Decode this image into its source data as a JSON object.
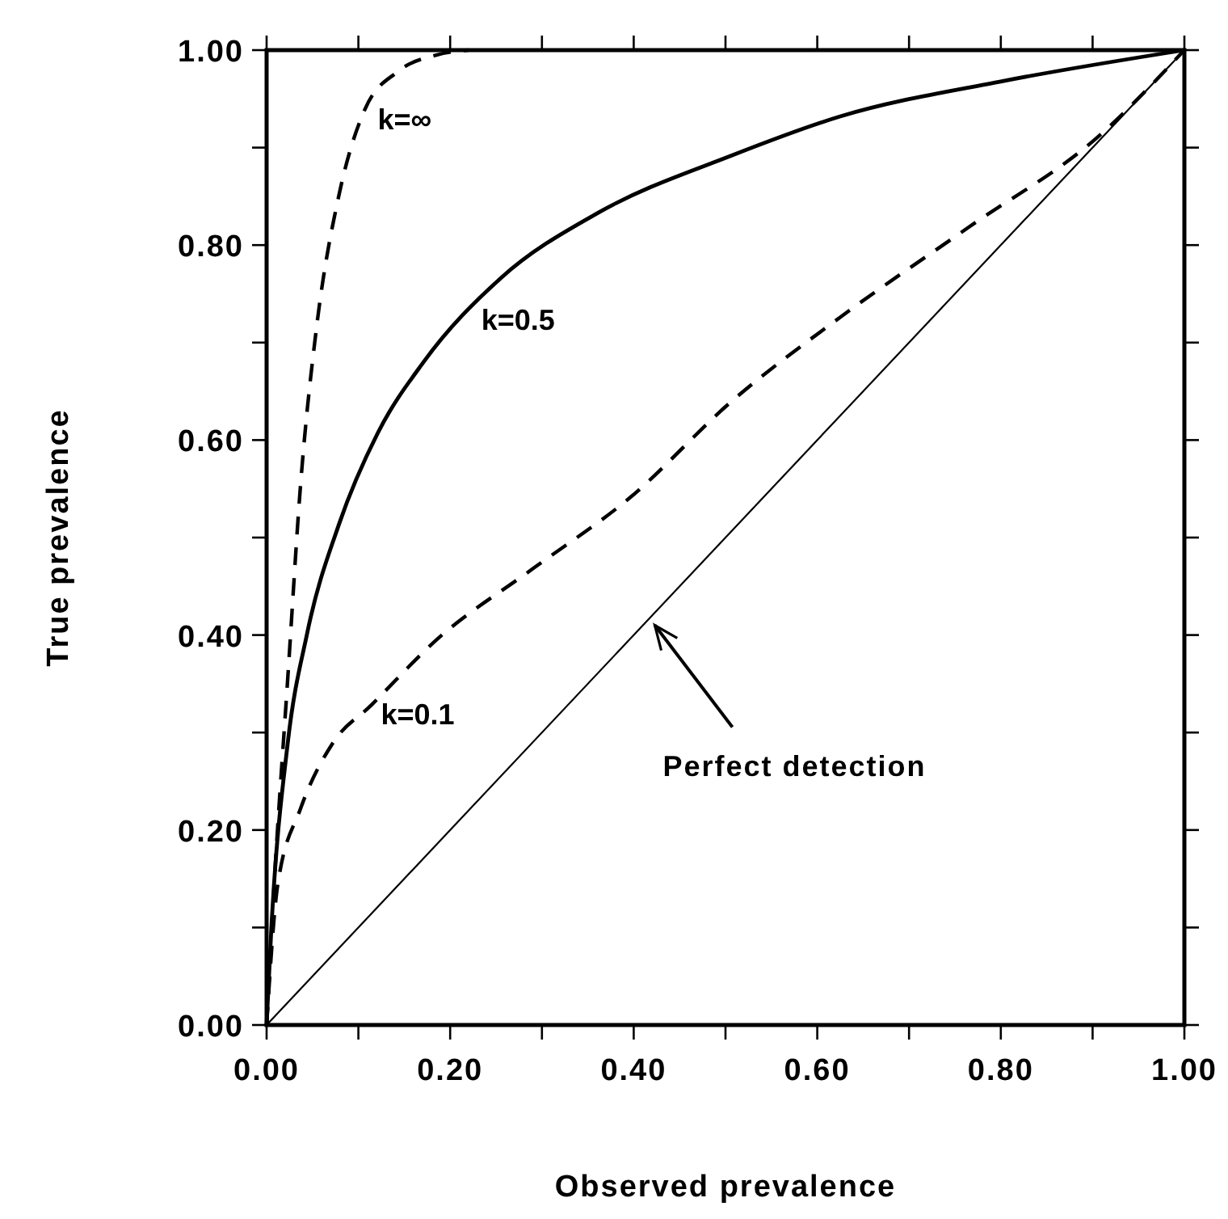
{
  "chart_data": {
    "type": "line",
    "xlabel": "Observed prevalence",
    "ylabel": "True prevalence",
    "xlim": [
      0,
      1
    ],
    "ylim": [
      0,
      1
    ],
    "xticks": [
      {
        "value": 0,
        "label": "0.00"
      },
      {
        "value": 0.1,
        "label": null
      },
      {
        "value": 0.2,
        "label": "0.20"
      },
      {
        "value": 0.3,
        "label": null
      },
      {
        "value": 0.4,
        "label": "0.40"
      },
      {
        "value": 0.5,
        "label": null
      },
      {
        "value": 0.6,
        "label": "0.60"
      },
      {
        "value": 0.7,
        "label": null
      },
      {
        "value": 0.8,
        "label": "0.80"
      },
      {
        "value": 0.9,
        "label": null
      },
      {
        "value": 1,
        "label": "1.00"
      }
    ],
    "yticks": [
      {
        "value": 0,
        "label": "0.00"
      },
      {
        "value": 0.1,
        "label": null
      },
      {
        "value": 0.2,
        "label": "0.20"
      },
      {
        "value": 0.3,
        "label": null
      },
      {
        "value": 0.4,
        "label": "0.40"
      },
      {
        "value": 0.5,
        "label": null
      },
      {
        "value": 0.6,
        "label": "0.60"
      },
      {
        "value": 0.7,
        "label": null
      },
      {
        "value": 0.8,
        "label": "0.80"
      },
      {
        "value": 0.9,
        "label": null
      },
      {
        "value": 1,
        "label": "1.00"
      }
    ],
    "grid": false,
    "marker": "none",
    "annotations": [
      {
        "text": "Perfect detection",
        "x": 0.423,
        "y": 0.41
      }
    ],
    "series": [
      {
        "name": "k=∞",
        "color": "#000000",
        "line_style": "dashed",
        "x": [
          0,
          0.009,
          0.023,
          0.037,
          0.055,
          0.079,
          0.107,
          0.143,
          0.185,
          0.22
        ],
        "values": [
          0,
          0.156,
          0.355,
          0.554,
          0.72,
          0.852,
          0.939,
          0.978,
          0.995,
          1.0
        ]
      },
      {
        "name": "k=0.5",
        "color": "#000000",
        "line_style": "solid",
        "x": [
          0,
          0.005,
          0.023,
          0.044,
          0.079,
          0.121,
          0.171,
          0.255,
          0.361,
          0.507,
          0.625,
          0.801,
          1
        ],
        "values": [
          0,
          0.096,
          0.289,
          0.401,
          0.514,
          0.607,
          0.68,
          0.766,
          0.833,
          0.892,
          0.932,
          0.968,
          1
        ]
      },
      {
        "name": "k=0.1",
        "color": "#000000",
        "line_style": "dashed",
        "x": [
          0,
          0.012,
          0.037,
          0.072,
          0.114,
          0.185,
          0.29,
          0.396,
          0.507,
          0.625,
          0.766,
          0.907,
          1
        ],
        "values": [
          0,
          0.143,
          0.222,
          0.289,
          0.328,
          0.395,
          0.468,
          0.541,
          0.64,
          0.726,
          0.819,
          0.912,
          1
        ]
      },
      {
        "color": "#000000",
        "line_style": "solid",
        "x": [
          0,
          1
        ],
        "values": [
          0,
          1
        ]
      }
    ]
  }
}
